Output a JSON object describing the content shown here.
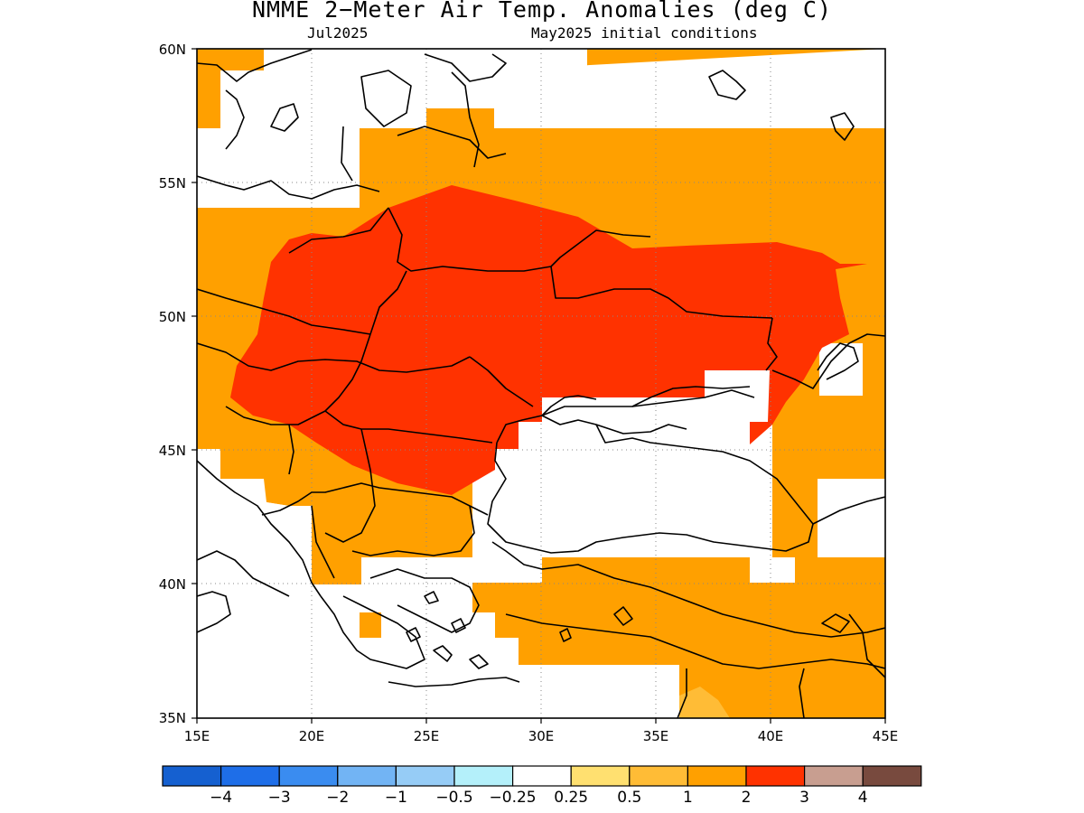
{
  "title": "NMME 2−Meter Air Temp. Anomalies (deg C)",
  "subtitle_month": "Jul2025",
  "subtitle_init": "May2025 initial conditions",
  "map": {
    "lon_range": [
      15,
      45
    ],
    "lat_range": [
      35,
      60
    ],
    "grid": "dotted",
    "lat_ticks": [
      "35N",
      "40N",
      "45N",
      "50N",
      "55N",
      "60N"
    ],
    "lon_ticks": [
      "15E",
      "20E",
      "25E",
      "30E",
      "35E",
      "40E",
      "45E"
    ]
  },
  "colorbar": {
    "colors": [
      "#1560d0",
      "#1e6ee8",
      "#3a8cf0",
      "#72b4f4",
      "#96ccf6",
      "#b4f0fa",
      "#ffffff",
      "#ffe070",
      "#ffbc36",
      "#ffa000",
      "#ff3200",
      "#c89e90",
      "#784a3e"
    ],
    "labels": [
      "−4",
      "−3",
      "−2",
      "−1",
      "−0.5",
      "−0.25",
      "0.25",
      "0.5",
      "1",
      "2",
      "3",
      "4"
    ]
  },
  "legend_colors": {
    "anomaly_1_to_2": "#ffa000",
    "anomaly_2_to_3": "#ff3200",
    "anomaly_0.5_to_1": "#ffbc36",
    "below_threshold": "#ffffff"
  }
}
